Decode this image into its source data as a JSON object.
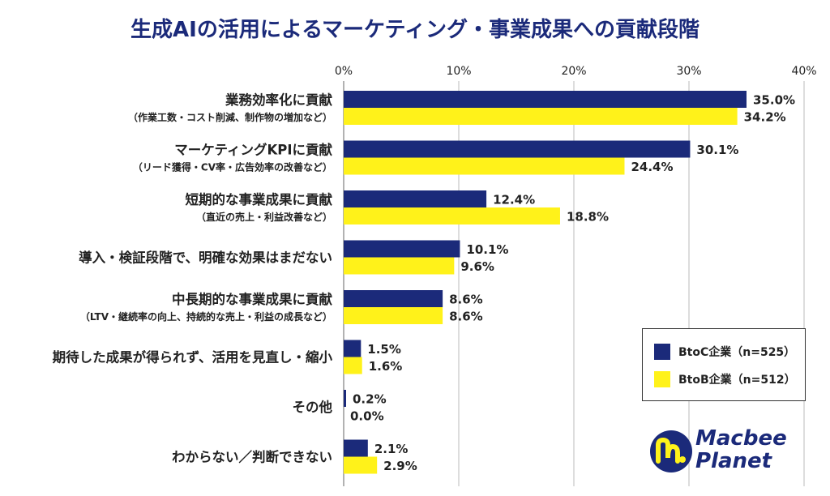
{
  "title": "生成AIの活用によるマーケティング・事業成果への貢献段階",
  "legend": {
    "btoc": "BtoC企業（n=525）",
    "btob": "BtoB企業（n=512）"
  },
  "colors": {
    "btoc": "#1b2a7a",
    "btob": "#fff21a",
    "title": "#1b2a7a",
    "gridline": "#bbbbbb"
  },
  "logo": {
    "line1": "Macbee",
    "line2": "Planet"
  },
  "chart_data": {
    "type": "bar",
    "orientation": "horizontal",
    "xlim": [
      0,
      40
    ],
    "ticks": [
      "0%",
      "10%",
      "20%",
      "30%",
      "40%"
    ],
    "tick_values": [
      0,
      10,
      20,
      30,
      40
    ],
    "grid": true,
    "legend_position": "bottom-right",
    "categories": [
      {
        "label": "業務効率化に貢献",
        "sub": "（作業工数・コスト削減、制作物の増加など）"
      },
      {
        "label": "マーケティングKPIに貢献",
        "sub": "（リード獲得・CV率・広告効率の改善など）"
      },
      {
        "label": "短期的な事業成果に貢献",
        "sub": "（直近の売上・利益改善など）"
      },
      {
        "label": "導入・検証段階で、明確な効果はまだない",
        "sub": ""
      },
      {
        "label": "中長期的な事業成果に貢献",
        "sub": "（LTV・継続率の向上、持続的な売上・利益の成長など）"
      },
      {
        "label": "期待した成果が得られず、活用を見直し・縮小",
        "sub": ""
      },
      {
        "label": "その他",
        "sub": ""
      },
      {
        "label": "わからない／判断できない",
        "sub": ""
      }
    ],
    "series": [
      {
        "name": "BtoC企業（n=525）",
        "values": [
          35.0,
          30.1,
          12.4,
          10.1,
          8.6,
          1.5,
          0.2,
          2.1
        ],
        "labels": [
          "35.0%",
          "30.1%",
          "12.4%",
          "10.1%",
          "8.6%",
          "1.5%",
          "0.2%",
          "2.1%"
        ]
      },
      {
        "name": "BtoB企業（n=512）",
        "values": [
          34.2,
          24.4,
          18.8,
          9.6,
          8.6,
          1.6,
          0.0,
          2.9
        ],
        "labels": [
          "34.2%",
          "24.4%",
          "18.8%",
          "9.6%",
          "8.6%",
          "1.6%",
          "0.0%",
          "2.9%"
        ]
      }
    ]
  }
}
